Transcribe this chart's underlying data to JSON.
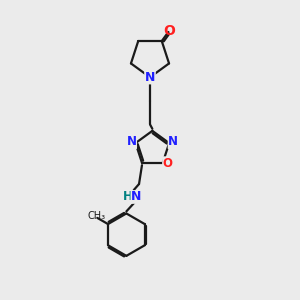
{
  "background_color": "#ebebeb",
  "bond_color": "#1a1a1a",
  "N_color": "#2020ff",
  "O_color": "#ff2020",
  "NH_color": "#008080",
  "line_width": 1.6,
  "font_size": 8.5,
  "xlim": [
    0,
    10
  ],
  "ylim": [
    0,
    10
  ]
}
